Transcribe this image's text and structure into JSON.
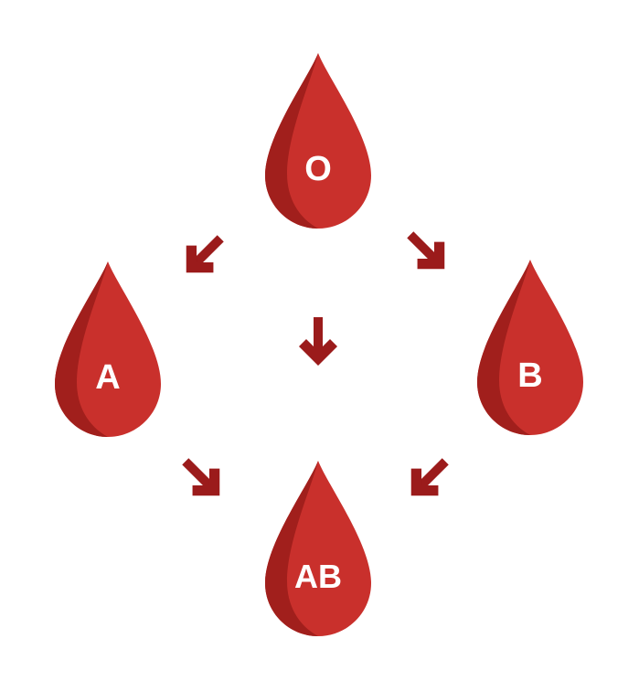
{
  "colors": {
    "drop_main": "#c9302c",
    "drop_shade": "#a11f1c",
    "arrow": "#9b1b1b",
    "label": "#ffffff"
  },
  "drops": {
    "o": {
      "label": "O"
    },
    "a": {
      "label": "A"
    },
    "b": {
      "label": "B"
    },
    "ab": {
      "label": "AB"
    }
  },
  "arrows": [
    {
      "from": "O",
      "to": "A"
    },
    {
      "from": "O",
      "to": "B"
    },
    {
      "from": "O",
      "to": "AB"
    },
    {
      "from": "A",
      "to": "AB"
    },
    {
      "from": "B",
      "to": "AB"
    }
  ]
}
